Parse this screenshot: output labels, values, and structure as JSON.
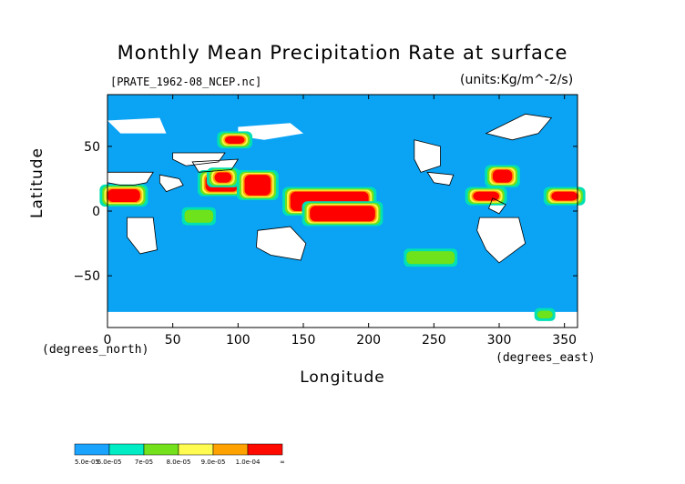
{
  "chart_data": {
    "type": "heatmap",
    "title": "Monthly Mean Precipitation Rate at surface",
    "file_label": "[PRATE_1962-08_NCEP.nc]",
    "units_label": "(units:Kg/m^-2/s)",
    "xlabel": "Longitude",
    "ylabel": "Latitude",
    "x_unit_label": "(degrees_east)",
    "y_unit_label": "(degrees_north)",
    "xlim": [
      0,
      360
    ],
    "ylim": [
      -90,
      90
    ],
    "x_ticks": [
      "0",
      "50",
      "100",
      "150",
      "200",
      "250",
      "300",
      "350"
    ],
    "y_ticks": [
      "50",
      "0",
      "−50"
    ],
    "colorbar": {
      "labels": [
        "5.0e-05",
        "6.0e-05",
        "7e-05",
        "8.0e-05",
        "9.0e-05",
        "1.0e-04",
        "∞"
      ],
      "colors": [
        "#1aa3ff",
        "#00ecc4",
        "#73e21d",
        "#fffb50",
        "#ffa200",
        "#ff0a00"
      ]
    },
    "colors": {
      "ocean": "#0ba3f4",
      "low": "#00e0b5",
      "mid": "#6ee21a",
      "high": "#fff64a",
      "veryhigh": "#ffa000",
      "max": "#ff0000",
      "missing": "#ffffff"
    },
    "regions": [
      {
        "level": "max",
        "lon": [
          0,
          25
        ],
        "lat": [
          7,
          17
        ]
      },
      {
        "level": "max",
        "lon": [
          75,
          100
        ],
        "lat": [
          15,
          28
        ]
      },
      {
        "level": "max",
        "lon": [
          82,
          95
        ],
        "lat": [
          22,
          30
        ]
      },
      {
        "level": "max",
        "lon": [
          105,
          125
        ],
        "lat": [
          12,
          28
        ]
      },
      {
        "level": "max",
        "lon": [
          140,
          200
        ],
        "lat": [
          0,
          15
        ]
      },
      {
        "level": "max",
        "lon": [
          155,
          205
        ],
        "lat": [
          -8,
          4
        ]
      },
      {
        "level": "max",
        "lon": [
          280,
          300
        ],
        "lat": [
          8,
          15
        ]
      },
      {
        "level": "max",
        "lon": [
          295,
          310
        ],
        "lat": [
          22,
          32
        ]
      },
      {
        "level": "max",
        "lon": [
          340,
          360
        ],
        "lat": [
          8,
          15
        ]
      },
      {
        "level": "max",
        "lon": [
          90,
          105
        ],
        "lat": [
          52,
          58
        ]
      }
    ]
  }
}
